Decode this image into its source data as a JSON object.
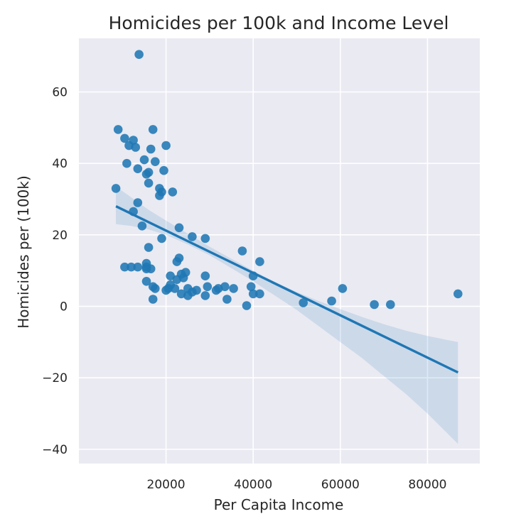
{
  "chart_data": {
    "type": "scatter",
    "title": "Homicides per 100k and Income Level",
    "xlabel": "Per Capita Income",
    "ylabel": "Homicides per (100k)",
    "xlim": [
      0,
      92000
    ],
    "ylim": [
      -44,
      75
    ],
    "grid": true,
    "xticks": [
      20000,
      40000,
      60000,
      80000
    ],
    "xtick_labels": [
      "20000",
      "40000",
      "60000",
      "80000"
    ],
    "yticks": [
      -40,
      -20,
      0,
      20,
      40,
      60
    ],
    "ytick_labels": [
      "−40",
      "−20",
      "0",
      "20",
      "40",
      "60"
    ],
    "colors": {
      "point": "#1f77b4",
      "line": "#1f77b4",
      "background": "#eaeaf2",
      "grid": "#ffffff"
    },
    "points": [
      [
        13800,
        70.5
      ],
      [
        9000,
        49.5
      ],
      [
        17000,
        49.5
      ],
      [
        10500,
        47
      ],
      [
        12500,
        46.5
      ],
      [
        11500,
        45
      ],
      [
        13000,
        44.5
      ],
      [
        20000,
        45
      ],
      [
        16500,
        44
      ],
      [
        13500,
        38.5
      ],
      [
        15000,
        41
      ],
      [
        17500,
        40.5
      ],
      [
        11000,
        40
      ],
      [
        15500,
        37
      ],
      [
        16000,
        37.5
      ],
      [
        19500,
        38
      ],
      [
        8500,
        33
      ],
      [
        16000,
        34.5
      ],
      [
        18500,
        33
      ],
      [
        19000,
        32
      ],
      [
        18500,
        31
      ],
      [
        21500,
        32
      ],
      [
        13500,
        29
      ],
      [
        12500,
        26.5
      ],
      [
        14500,
        22.5
      ],
      [
        23000,
        22
      ],
      [
        19000,
        19
      ],
      [
        26000,
        19.5
      ],
      [
        29000,
        19
      ],
      [
        16000,
        16.5
      ],
      [
        37500,
        15.5
      ],
      [
        23000,
        13.5
      ],
      [
        22500,
        12.5
      ],
      [
        41500,
        12.5
      ],
      [
        15500,
        12
      ],
      [
        10500,
        11
      ],
      [
        12000,
        11
      ],
      [
        13500,
        11
      ],
      [
        15500,
        11
      ],
      [
        15500,
        10.5
      ],
      [
        16500,
        10.5
      ],
      [
        24500,
        9.5
      ],
      [
        23500,
        9
      ],
      [
        21000,
        8.5
      ],
      [
        29000,
        8.5
      ],
      [
        40000,
        8.5
      ],
      [
        24000,
        8
      ],
      [
        22500,
        7.5
      ],
      [
        15500,
        7
      ],
      [
        21000,
        6
      ],
      [
        17000,
        5.5
      ],
      [
        17500,
        5
      ],
      [
        20500,
        5
      ],
      [
        22000,
        5
      ],
      [
        25000,
        5
      ],
      [
        29500,
        5.5
      ],
      [
        32000,
        5
      ],
      [
        33500,
        5.5
      ],
      [
        35500,
        5
      ],
      [
        39500,
        5.5
      ],
      [
        60500,
        5
      ],
      [
        27000,
        4.5
      ],
      [
        26000,
        4
      ],
      [
        31500,
        4.5
      ],
      [
        20000,
        4.5
      ],
      [
        23500,
        3.5
      ],
      [
        25000,
        3
      ],
      [
        29000,
        3
      ],
      [
        40000,
        3.5
      ],
      [
        41500,
        3.5
      ],
      [
        87000,
        3.5
      ],
      [
        17000,
        2
      ],
      [
        34000,
        2
      ],
      [
        51500,
        1
      ],
      [
        58000,
        1.5
      ],
      [
        38500,
        0.2
      ],
      [
        67800,
        0.5
      ],
      [
        71500,
        0.5
      ]
    ],
    "regression": {
      "x": [
        8500,
        87000
      ],
      "y": [
        28.0,
        -18.5
      ]
    },
    "ci_band": {
      "x": [
        8500,
        12000,
        16000,
        20000,
        25000,
        30000,
        35000,
        40000,
        45000,
        50000,
        55000,
        60000,
        65000,
        70000,
        75000,
        80000,
        87000
      ],
      "upper": [
        33.5,
        30.5,
        27.0,
        24.0,
        20.3,
        16.7,
        13.3,
        10.0,
        6.8,
        4.0,
        1.5,
        -0.8,
        -3.0,
        -5.0,
        -6.8,
        -8.3,
        -10.0
      ],
      "lower": [
        23.0,
        22.5,
        21.5,
        20.0,
        17.3,
        14.3,
        10.7,
        7.0,
        3.0,
        -1.0,
        -5.5,
        -10.0,
        -14.5,
        -19.5,
        -24.5,
        -30.0,
        -38.5
      ]
    }
  }
}
